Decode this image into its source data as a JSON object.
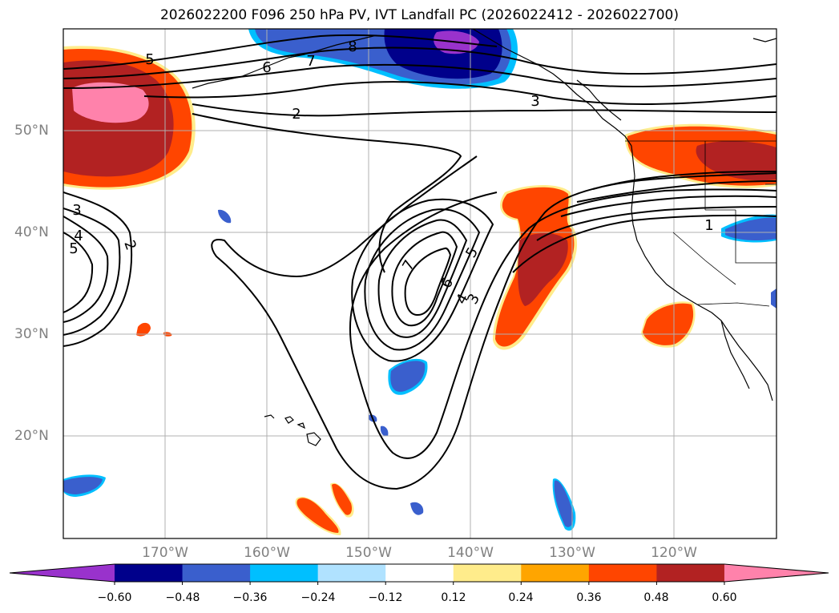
{
  "title": "2026022200 F096 250 hPa PV, IVT Landfall PC (2026022412 - 2026022700)",
  "lat_labels": [
    "50°N",
    "40°N",
    "30°N",
    "20°N"
  ],
  "lon_labels": [
    "170°W",
    "160°W",
    "150°W",
    "140°W",
    "130°W",
    "120°W"
  ],
  "contour_labels": {
    "c1": "1",
    "c2a": "2",
    "c2b": "2",
    "c3a": "3",
    "c3b": "3",
    "c3c": "3",
    "c4a": "4",
    "c4b": "4",
    "c5a": "5",
    "c5b": "5",
    "c5c": "5",
    "c6a": "6",
    "c6b": "6",
    "c7a": "7",
    "c7b": "7",
    "c8": "8"
  },
  "colorbar": {
    "ticks": [
      "−0.60",
      "−0.48",
      "−0.36",
      "−0.24",
      "−0.12",
      "0.12",
      "0.24",
      "0.36",
      "0.48",
      "0.60"
    ],
    "colors": [
      "#9932cc",
      "#00008b",
      "#3a5fcd",
      "#00bfff",
      "#b0e2ff",
      "#ffffff",
      "#ffec8b",
      "#ffa500",
      "#ff4500",
      "#b22222",
      "#ff82ab"
    ]
  },
  "colors": {
    "orange_red": "#ff4500",
    "firebrick": "#b22222",
    "pink": "#ff82ab",
    "gold": "#ffec8b",
    "orange": "#ffa500",
    "royal_blue": "#3a5fcd",
    "navy": "#00008b",
    "purple": "#9932cc",
    "sky": "#00bfff",
    "gridline": "#b0b0b0"
  }
}
